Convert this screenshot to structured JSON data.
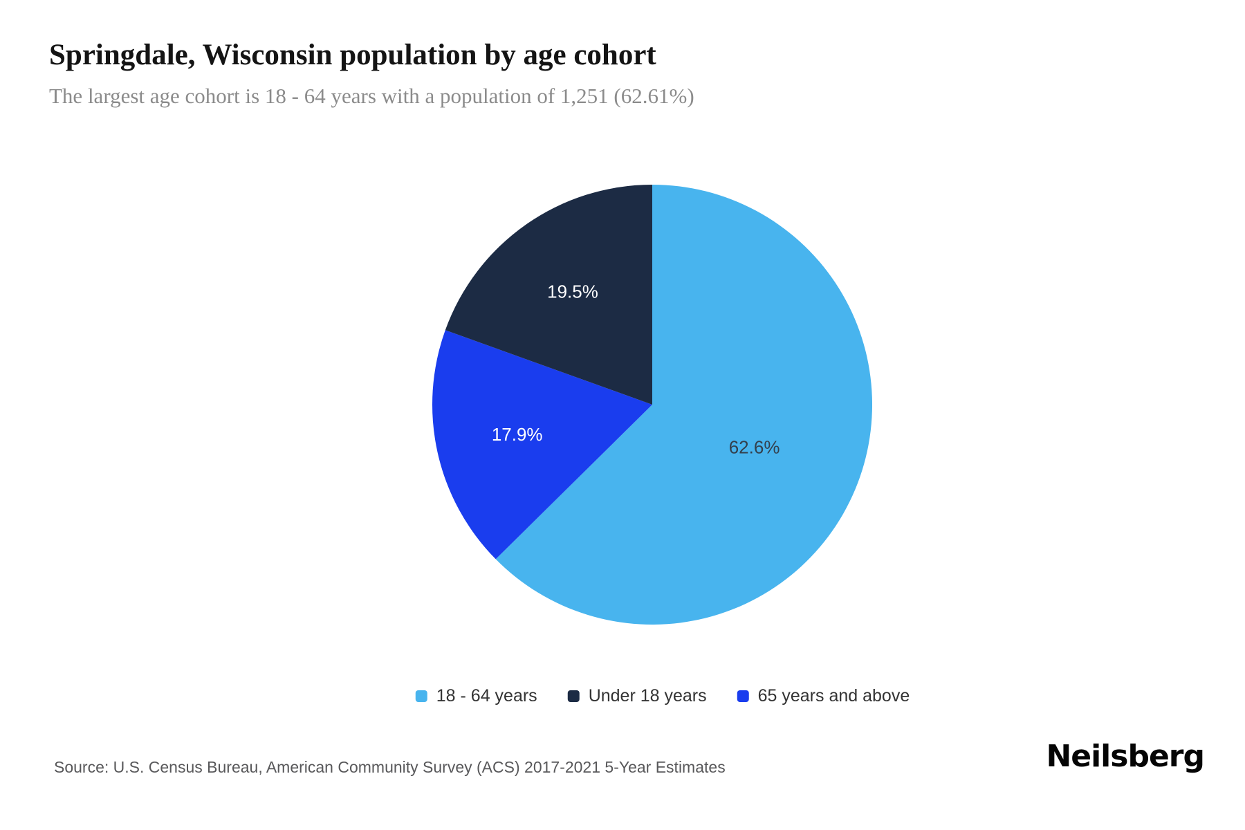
{
  "header": {
    "title": "Springdale, Wisconsin population by age cohort",
    "subtitle": "The largest age cohort is 18 - 64 years with a population of 1,251 (62.61%)"
  },
  "chart_data": {
    "type": "pie",
    "title": "Springdale, Wisconsin population by age cohort",
    "unit": "percent",
    "start_angle_deg": 0,
    "direction": "clockwise",
    "slices": [
      {
        "label": "18 - 64 years",
        "value": 62.6,
        "display": "62.6%",
        "color": "#48b4ee",
        "label_color": "#33404d"
      },
      {
        "label": "65 years and above",
        "value": 17.9,
        "display": "17.9%",
        "color": "#1a3dee",
        "label_color": "#ffffff"
      },
      {
        "label": "Under 18 years",
        "value": 19.5,
        "display": "19.5%",
        "color": "#1c2b44",
        "label_color": "#ffffff"
      }
    ],
    "legend": {
      "position": "bottom",
      "items": [
        {
          "label": "18 - 64 years",
          "color": "#48b4ee"
        },
        {
          "label": "Under 18 years",
          "color": "#1c2b44"
        },
        {
          "label": "65 years and above",
          "color": "#1a3dee"
        }
      ]
    }
  },
  "footer": {
    "source": "Source: U.S. Census Bureau, American Community Survey (ACS) 2017-2021 5-Year Estimates",
    "brand": "Neilsberg"
  }
}
